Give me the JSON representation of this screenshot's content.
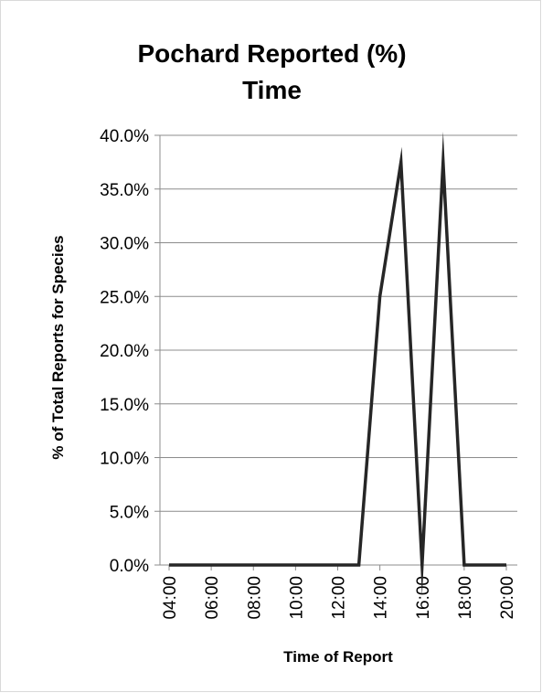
{
  "chart_data": {
    "type": "line",
    "title_lines": [
      "Pochard Reported (%)",
      "Time"
    ],
    "xlabel": "Time of Report",
    "ylabel": "% of Total Reports for Species",
    "ylim": [
      0,
      0.4
    ],
    "yticks": [
      "0.0%",
      "5.0%",
      "10.0%",
      "15.0%",
      "20.0%",
      "25.0%",
      "30.0%",
      "35.0%",
      "40.0%"
    ],
    "xticks": [
      "04:00",
      "06:00",
      "08:00",
      "10:00",
      "12:00",
      "14:00",
      "16:00",
      "18:00",
      "20:00"
    ],
    "grid": true,
    "legend": "none",
    "line_color": "#262626",
    "series": [
      {
        "x": [
          "04:00",
          "05:00",
          "06:00",
          "07:00",
          "08:00",
          "09:00",
          "10:00",
          "11:00",
          "12:00",
          "13:00",
          "14:00",
          "15:00",
          "16:00",
          "17:00",
          "18:00",
          "19:00",
          "20:00"
        ],
        "values": [
          0,
          0,
          0,
          0,
          0,
          0,
          0,
          0,
          0,
          0,
          0.25,
          0.375,
          0,
          0.375,
          0,
          0,
          0
        ]
      }
    ]
  }
}
